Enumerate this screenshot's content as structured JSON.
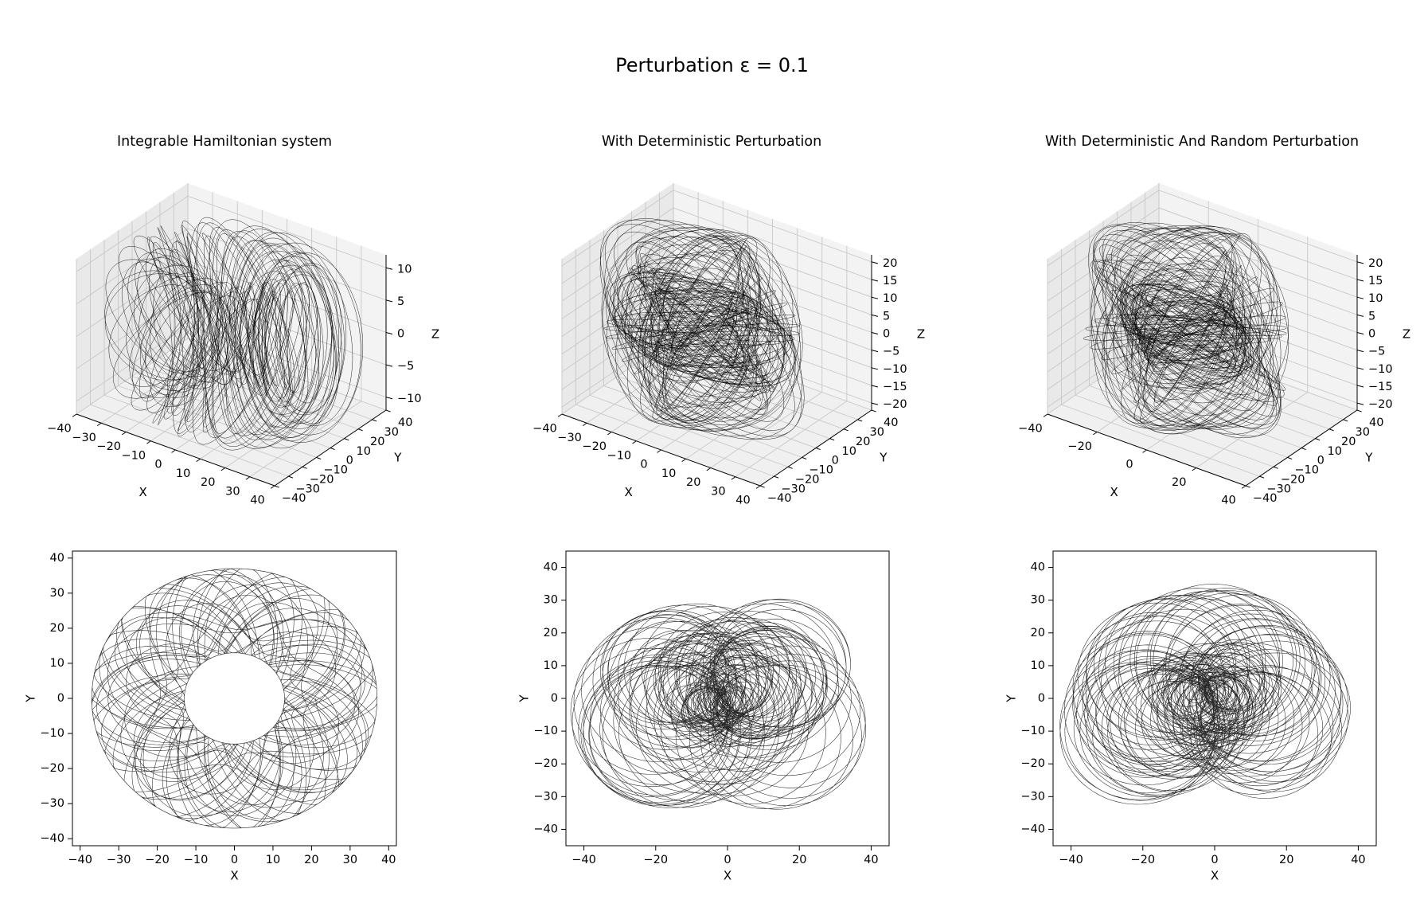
{
  "figure": {
    "suptitle": "Perturbation ε = 0.1"
  },
  "chart_data": [
    {
      "type": "line",
      "projection": "3d",
      "title": "Integrable Hamiltonian system",
      "xlabel": "X",
      "ylabel": "Y",
      "zlabel": "Z",
      "xlim": [
        -40,
        40
      ],
      "ylim": [
        -40,
        40
      ],
      "zlim": [
        -12,
        12
      ],
      "xticks": [
        -40,
        -30,
        -20,
        -10,
        0,
        10,
        20,
        30,
        40
      ],
      "yticks": [
        -40,
        -30,
        -20,
        -10,
        0,
        10,
        20,
        30,
        40
      ],
      "zticks": [
        -10,
        -5,
        0,
        5,
        10
      ],
      "grid": true,
      "line_color": "#000000",
      "trajectory": {
        "model": "torus",
        "R": 25,
        "r": 12,
        "turns_major": 38,
        "winding": 2.618,
        "variation": 0.35
      }
    },
    {
      "type": "line",
      "projection": "3d",
      "title": "With Deterministic Perturbation",
      "xlabel": "X",
      "ylabel": "Y",
      "zlabel": "Z",
      "xlim": [
        -40,
        40
      ],
      "ylim": [
        -40,
        40
      ],
      "zlim": [
        -22,
        22
      ],
      "xticks": [
        -40,
        -30,
        -20,
        -10,
        0,
        10,
        20,
        30,
        40
      ],
      "yticks": [
        -40,
        -30,
        -20,
        -10,
        0,
        10,
        20,
        30,
        40
      ],
      "zticks": [
        -20,
        -15,
        -10,
        -5,
        0,
        5,
        10,
        15,
        20
      ],
      "grid": true,
      "line_color": "#000000",
      "trajectory": {
        "model": "sphere-like",
        "radius": 37,
        "zmax": 20,
        "loops": 120
      }
    },
    {
      "type": "line",
      "projection": "3d",
      "title": "With Deterministic And Random Perturbation",
      "xlabel": "X",
      "ylabel": "Y",
      "zlabel": "Z",
      "xlim": [
        -40,
        40
      ],
      "ylim": [
        -40,
        40
      ],
      "zlim": [
        -22,
        22
      ],
      "xticks": [
        -40,
        -20,
        0,
        20,
        40
      ],
      "yticks": [
        -40,
        -30,
        -20,
        -10,
        0,
        10,
        20,
        30,
        40
      ],
      "zticks": [
        -20,
        -15,
        -10,
        -5,
        0,
        5,
        10,
        15,
        20
      ],
      "grid": true,
      "line_color": "#000000",
      "trajectory": {
        "model": "sphere-like-noisy",
        "radius": 37,
        "zmax": 20,
        "loops": 120
      }
    },
    {
      "type": "line",
      "title": "",
      "xlabel": "X",
      "ylabel": "Y",
      "xlim": [
        -42,
        42
      ],
      "ylim": [
        -42,
        42
      ],
      "xticks": [
        -40,
        -30,
        -20,
        -10,
        0,
        10,
        20,
        30,
        40
      ],
      "yticks": [
        -40,
        -30,
        -20,
        -10,
        0,
        10,
        20,
        30,
        40
      ],
      "grid": false,
      "line_color": "#000000",
      "trajectory": {
        "model": "annulus",
        "inner_radius": 13,
        "outer_radius": 37
      }
    },
    {
      "type": "line",
      "title": "",
      "xlabel": "X",
      "ylabel": "Y",
      "xlim": [
        -45,
        45
      ],
      "ylim": [
        -45,
        45
      ],
      "xticks": [
        -40,
        -20,
        0,
        20,
        40
      ],
      "yticks": [
        -40,
        -30,
        -20,
        -10,
        0,
        10,
        20,
        30,
        40
      ],
      "grid": false,
      "line_color": "#000000",
      "trajectory": {
        "model": "filled-disk",
        "outer_radius": 40,
        "center_star": [
          0,
          0
        ]
      }
    },
    {
      "type": "line",
      "title": "",
      "xlabel": "X",
      "ylabel": "Y",
      "xlim": [
        -45,
        45
      ],
      "ylim": [
        -45,
        45
      ],
      "xticks": [
        -40,
        -20,
        0,
        20,
        40
      ],
      "yticks": [
        -40,
        -30,
        -20,
        -10,
        0,
        10,
        20,
        30,
        40
      ],
      "grid": false,
      "line_color": "#000000",
      "trajectory": {
        "model": "filled-disk-noisy",
        "outer_radius": 40,
        "center_star": [
          0,
          0
        ]
      }
    }
  ]
}
